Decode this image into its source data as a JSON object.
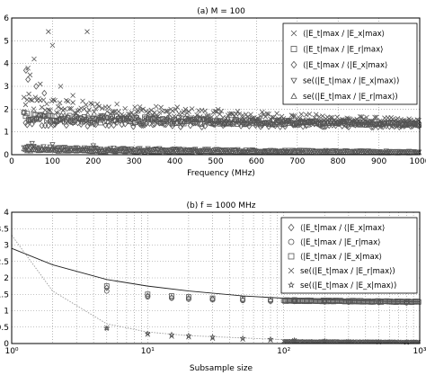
{
  "colors": {
    "marker": "#555555",
    "fit_line": "#222222",
    "grid": "#8a8a8a",
    "axes": "#000000"
  },
  "chart_data": [
    {
      "type": "scatter",
      "title": "(a) M = 100",
      "xlabel": "Frequency (MHz)",
      "ylabel": "",
      "xlim": [
        0,
        1000
      ],
      "ylim": [
        0,
        6
      ],
      "x_ticks": [
        "0",
        "100",
        "200",
        "300",
        "400",
        "500",
        "600",
        "700",
        "800",
        "900",
        "1000"
      ],
      "y_ticks": [
        "0",
        "1",
        "2",
        "3",
        "4",
        "5",
        "6"
      ],
      "grid": true,
      "legend_position": "top-right",
      "legend": [
        {
          "marker": "x",
          "label": "⟨|E_t|max / |E_x|max⟩"
        },
        {
          "marker": "square",
          "label": "⟨|E_t|max / |E_r|max⟩"
        },
        {
          "marker": "diamond",
          "label": "⟨|E_t|max / ⟨|E_x|max⟩"
        },
        {
          "marker": "triangle-down",
          "label": "se(⟨|E_t|max / |E_x|max⟩)"
        },
        {
          "marker": "triangle-up",
          "label": "se(⟨|E_t|max / |E_r|max⟩)"
        }
      ],
      "series": [
        {
          "marker": "x",
          "level_start": 2.4,
          "level_end": 1.45,
          "spread": 0.25,
          "outliers": [
            [
              40,
              3.8
            ],
            [
              45,
              3.5
            ],
            [
              55,
              4.2
            ],
            [
              70,
              3.1
            ],
            [
              90,
              5.4
            ],
            [
              100,
              4.8
            ],
            [
              120,
              3.0
            ],
            [
              185,
              5.4
            ],
            [
              150,
              2.6
            ]
          ]
        },
        {
          "marker": "square",
          "level_start": 1.7,
          "level_end": 1.35,
          "spread": 0.12
        },
        {
          "marker": "diamond",
          "level_start": 1.6,
          "level_end": 1.3,
          "spread": 0.18,
          "outliers": [
            [
              35,
              3.7
            ],
            [
              40,
              3.3
            ],
            [
              60,
              3.0
            ],
            [
              80,
              2.7
            ]
          ]
        },
        {
          "marker": "triangle-down",
          "level_start": 0.35,
          "level_end": 0.13,
          "spread": 0.05,
          "outliers": [
            [
              50,
              0.5
            ],
            [
              100,
              0.45
            ],
            [
              200,
              0.4
            ],
            [
              250,
              0.3
            ]
          ]
        },
        {
          "marker": "triangle-up",
          "level_start": 0.22,
          "level_end": 0.08,
          "spread": 0.03
        }
      ]
    },
    {
      "type": "scatter",
      "title": "(b) f = 1000 MHz",
      "xlabel": "Subsample size",
      "ylabel": "",
      "x_scale": "log",
      "xlim": [
        1,
        1000
      ],
      "ylim": [
        0,
        4
      ],
      "x_ticks": [
        "10⁰",
        "10¹",
        "10²",
        "10³"
      ],
      "y_ticks": [
        "0",
        "0.5",
        "1",
        "1.5",
        "2",
        "2.5",
        "3",
        "3.5",
        "4"
      ],
      "grid": true,
      "legend_position": "top-right",
      "legend": [
        {
          "marker": "diamond",
          "label": "⟨|E_t|max / ⟨|E_x|max⟩"
        },
        {
          "marker": "circle",
          "label": "⟨|E_t|max / |E_r|max⟩"
        },
        {
          "marker": "square",
          "label": "⟨|E_t|max / |E_x|max⟩"
        },
        {
          "marker": "x",
          "label": "se(⟨|E_t|max / |E_r|max⟩)"
        },
        {
          "marker": "star",
          "label": "se(⟨|E_t|max / |E_x|max⟩)"
        }
      ],
      "fit_curves": [
        {
          "name": "mean_fit",
          "style": "solid",
          "points": [
            [
              1,
              2.9
            ],
            [
              2,
              2.4
            ],
            [
              5,
              1.95
            ],
            [
              10,
              1.75
            ],
            [
              20,
              1.6
            ],
            [
              50,
              1.45
            ],
            [
              100,
              1.38
            ],
            [
              200,
              1.33
            ],
            [
              500,
              1.29
            ],
            [
              1000,
              1.27
            ]
          ]
        },
        {
          "name": "se_fit",
          "style": "dotted",
          "points": [
            [
              1,
              3.3
            ],
            [
              2,
              1.6
            ],
            [
              5,
              0.6
            ],
            [
              10,
              0.35
            ],
            [
              20,
              0.24
            ],
            [
              50,
              0.17
            ],
            [
              100,
              0.12
            ],
            [
              200,
              0.08
            ],
            [
              500,
              0.05
            ],
            [
              1000,
              0.04
            ]
          ]
        }
      ],
      "series": [
        {
          "marker": "diamond",
          "points": [
            [
              5,
              1.7
            ],
            [
              10,
              1.45
            ],
            [
              15,
              1.4
            ],
            [
              20,
              1.38
            ],
            [
              30,
              1.36
            ],
            [
              50,
              1.33
            ],
            [
              80,
              1.31
            ],
            [
              120,
              1.3
            ],
            [
              200,
              1.28
            ],
            [
              300,
              1.27
            ],
            [
              500,
              1.26
            ],
            [
              800,
              1.25
            ]
          ]
        },
        {
          "marker": "circle",
          "points": [
            [
              5,
              1.6
            ],
            [
              10,
              1.42
            ],
            [
              15,
              1.38
            ],
            [
              20,
              1.35
            ],
            [
              30,
              1.33
            ],
            [
              50,
              1.31
            ],
            [
              80,
              1.29
            ],
            [
              120,
              1.28
            ],
            [
              200,
              1.27
            ],
            [
              300,
              1.26
            ],
            [
              500,
              1.25
            ],
            [
              800,
              1.24
            ]
          ]
        },
        {
          "marker": "square",
          "points": [
            [
              5,
              1.75
            ],
            [
              10,
              1.5
            ],
            [
              15,
              1.45
            ],
            [
              20,
              1.42
            ],
            [
              30,
              1.38
            ],
            [
              50,
              1.36
            ],
            [
              80,
              1.34
            ],
            [
              120,
              1.33
            ],
            [
              200,
              1.31
            ],
            [
              300,
              1.3
            ],
            [
              500,
              1.29
            ],
            [
              800,
              1.28
            ]
          ]
        },
        {
          "marker": "x",
          "points": [
            [
              5,
              0.48
            ],
            [
              10,
              0.28
            ],
            [
              15,
              0.22
            ],
            [
              20,
              0.2
            ],
            [
              30,
              0.16
            ],
            [
              50,
              0.13
            ],
            [
              80,
              0.1
            ],
            [
              120,
              0.09
            ],
            [
              200,
              0.07
            ],
            [
              300,
              0.06
            ],
            [
              500,
              0.05
            ],
            [
              800,
              0.04
            ]
          ]
        },
        {
          "marker": "star",
          "points": [
            [
              5,
              0.46
            ],
            [
              10,
              0.3
            ],
            [
              15,
              0.27
            ],
            [
              20,
              0.24
            ],
            [
              30,
              0.2
            ],
            [
              50,
              0.16
            ],
            [
              80,
              0.13
            ],
            [
              120,
              0.1
            ],
            [
              200,
              0.08
            ],
            [
              300,
              0.06
            ],
            [
              500,
              0.05
            ],
            [
              800,
              0.04
            ]
          ]
        }
      ]
    }
  ]
}
